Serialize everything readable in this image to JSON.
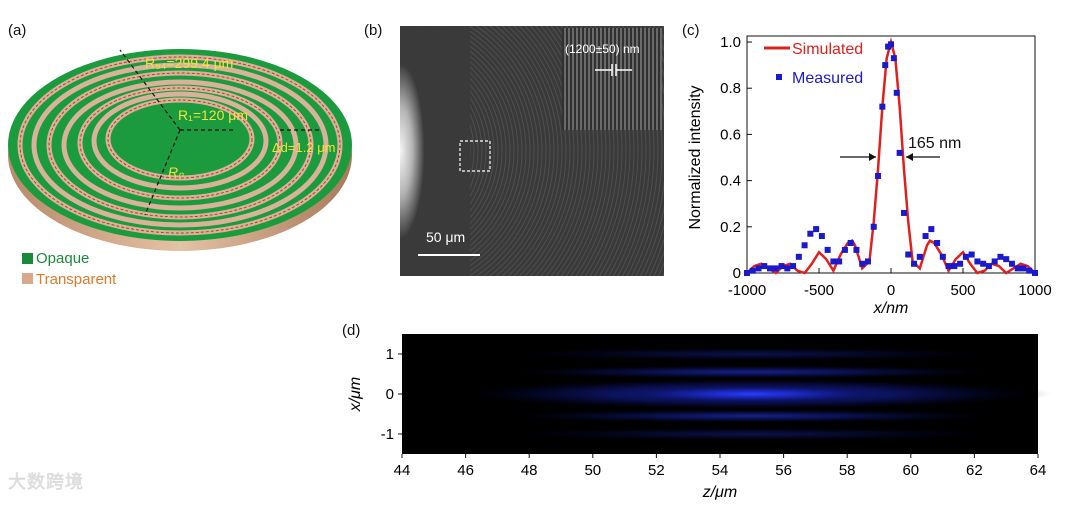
{
  "panels": {
    "a": {
      "label": "(a)",
      "annotations": {
        "r64": "R₆₄=299.4 μm",
        "r1": "R₁=120 μm",
        "delta_d": "Δd=1.2 μm",
        "rn": "Rₙ"
      },
      "legend": [
        {
          "label": "Opaque",
          "color": "#1a8a3a"
        },
        {
          "label": "Transparent",
          "color": "#d9a88a"
        }
      ]
    },
    "b": {
      "label": "(b)",
      "inset_label": "(1200±50) nm",
      "scale_bar": "50 μm"
    },
    "c": {
      "label": "(c)",
      "fwhm_label": "165 nm"
    },
    "d": {
      "label": "(d)"
    }
  },
  "chart_data": [
    {
      "type": "line",
      "panel": "c",
      "xlabel": "x/nm",
      "ylabel": "Normalized intensity",
      "xlim": [
        -1000,
        1000
      ],
      "ylim": [
        0,
        1.0
      ],
      "xticks": [
        -1000,
        -500,
        0,
        500,
        1000
      ],
      "yticks": [
        0,
        0.2,
        0.4,
        0.6,
        0.8,
        1.0
      ],
      "legend_position": "top-right",
      "series": [
        {
          "name": "Simulated",
          "style": "line",
          "color": "#e0201e",
          "x": [
            -1000,
            -950,
            -900,
            -850,
            -800,
            -750,
            -700,
            -650,
            -600,
            -550,
            -500,
            -450,
            -400,
            -350,
            -300,
            -270,
            -250,
            -200,
            -150,
            -120,
            -90,
            -60,
            -30,
            0,
            30,
            60,
            90,
            120,
            150,
            200,
            250,
            270,
            300,
            350,
            400,
            450,
            500,
            550,
            600,
            650,
            700,
            750,
            800,
            850,
            900,
            950,
            1000
          ],
          "y": [
            0.0,
            0.03,
            0.04,
            0.02,
            0.0,
            0.03,
            0.04,
            0.01,
            0.0,
            0.04,
            0.09,
            0.06,
            0.01,
            0.08,
            0.13,
            0.14,
            0.12,
            0.02,
            0.05,
            0.22,
            0.45,
            0.72,
            0.93,
            1.0,
            0.93,
            0.72,
            0.45,
            0.22,
            0.05,
            0.02,
            0.12,
            0.14,
            0.13,
            0.08,
            0.01,
            0.06,
            0.09,
            0.04,
            0.0,
            0.01,
            0.04,
            0.03,
            0.0,
            0.02,
            0.04,
            0.03,
            0.0
          ]
        },
        {
          "name": "Measured",
          "style": "scatter",
          "color": "#1a1acc",
          "x": [
            -1000,
            -960,
            -920,
            -880,
            -840,
            -800,
            -760,
            -720,
            -680,
            -640,
            -600,
            -560,
            -520,
            -480,
            -440,
            -400,
            -360,
            -320,
            -280,
            -240,
            -200,
            -160,
            -120,
            -90,
            -60,
            -40,
            -20,
            0,
            20,
            40,
            60,
            90,
            120,
            160,
            200,
            240,
            280,
            320,
            360,
            400,
            440,
            480,
            520,
            560,
            600,
            640,
            680,
            720,
            760,
            800,
            840,
            880,
            920,
            960,
            1000
          ],
          "y": [
            0.0,
            0.01,
            0.02,
            0.03,
            0.02,
            0.02,
            0.03,
            0.02,
            0.03,
            0.07,
            0.12,
            0.17,
            0.19,
            0.16,
            0.1,
            0.05,
            0.05,
            0.1,
            0.13,
            0.1,
            0.04,
            0.05,
            0.2,
            0.42,
            0.72,
            0.9,
            0.98,
            0.99,
            0.93,
            0.78,
            0.52,
            0.26,
            0.08,
            0.04,
            0.07,
            0.16,
            0.19,
            0.13,
            0.07,
            0.03,
            0.03,
            0.04,
            0.07,
            0.08,
            0.05,
            0.04,
            0.03,
            0.05,
            0.07,
            0.06,
            0.04,
            0.02,
            0.02,
            0.01,
            0.0
          ]
        }
      ]
    },
    {
      "type": "heatmap",
      "panel": "d",
      "xlabel": "z/μm",
      "ylabel": "x/μm",
      "xlim": [
        44,
        64
      ],
      "ylim": [
        -1.5,
        1.5
      ],
      "xticks": [
        44,
        46,
        48,
        50,
        52,
        54,
        56,
        58,
        60,
        62,
        64
      ],
      "yticks": [
        -1,
        0,
        1
      ],
      "colormap": "black-to-blue",
      "peak": {
        "z": 55,
        "x": 0
      }
    }
  ],
  "watermark": "大数跨境"
}
